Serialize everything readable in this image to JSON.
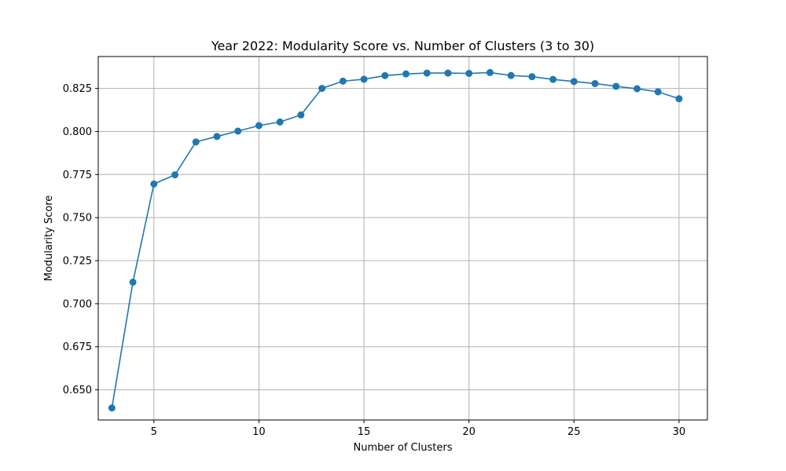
{
  "chart_data": {
    "type": "line",
    "title": "Year 2022: Modularity Score vs. Number of Clusters (3 to 30)",
    "xlabel": "Number of Clusters",
    "ylabel": "Modularity Score",
    "xlim": [
      2.35,
      31.35
    ],
    "ylim": [
      0.6325,
      0.8435
    ],
    "x_ticks": [
      5,
      10,
      15,
      20,
      25,
      30
    ],
    "y_ticks": [
      0.65,
      0.675,
      0.7,
      0.725,
      0.75,
      0.775,
      0.8,
      0.825
    ],
    "grid": true,
    "series": [
      {
        "color": "#1f77b4",
        "marker": "circle",
        "x": [
          3,
          4,
          5,
          6,
          7,
          8,
          9,
          10,
          11,
          12,
          13,
          14,
          15,
          16,
          17,
          18,
          19,
          20,
          21,
          22,
          23,
          24,
          25,
          26,
          27,
          28,
          29,
          30
        ],
        "y": [
          0.6395,
          0.7125,
          0.7695,
          0.7748,
          0.7939,
          0.7971,
          0.8002,
          0.8034,
          0.8055,
          0.8096,
          0.825,
          0.8292,
          0.8303,
          0.8324,
          0.8334,
          0.8339,
          0.8339,
          0.8337,
          0.8342,
          0.8325,
          0.8318,
          0.8302,
          0.829,
          0.8278,
          0.8262,
          0.8248,
          0.823,
          0.819
        ]
      }
    ]
  }
}
